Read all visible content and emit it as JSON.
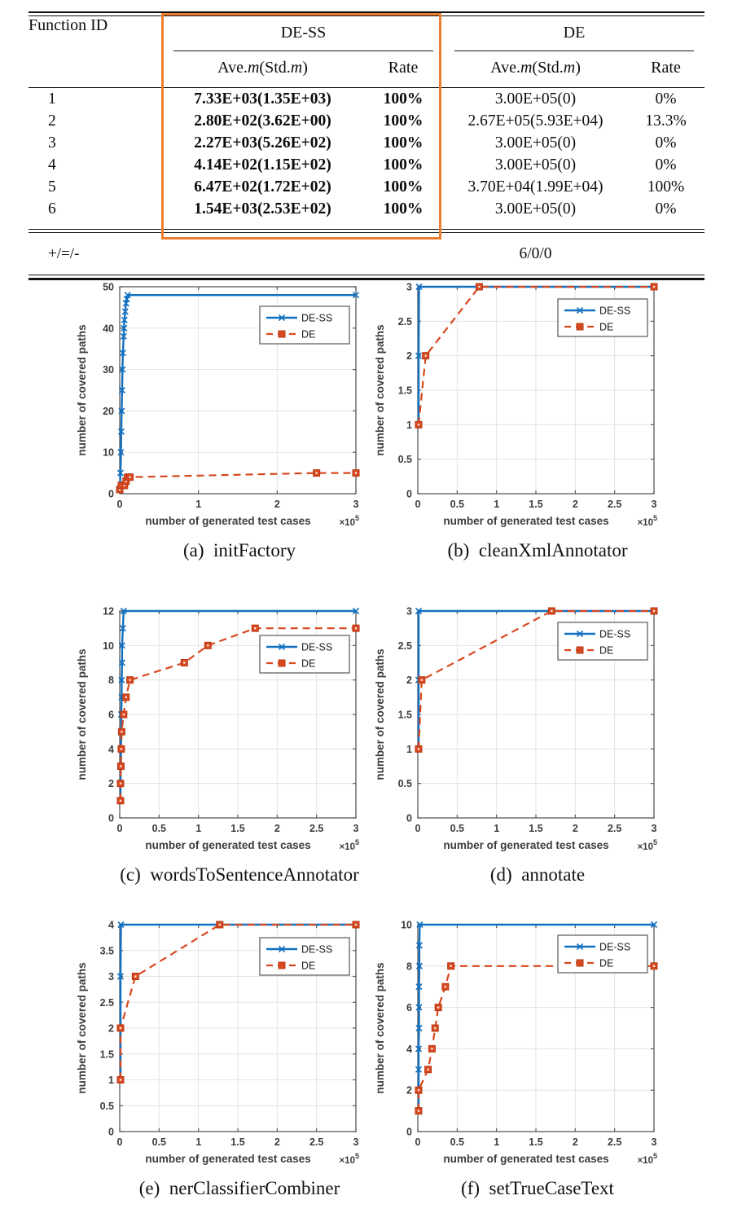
{
  "colors": {
    "dess_line": "#1170C0",
    "de_line": "#D8481F",
    "de_marker_edge": "#B93A15",
    "highlight_box": "#ED7D31",
    "grid": "#E3E3E3",
    "axis": "#5A5A5A"
  },
  "table": {
    "col_headers": {
      "function_id": "Function ID",
      "group1": "DE-SS",
      "group2": "DE",
      "ave": {
        "p1": "Ave.",
        "m1": "m",
        "p2": "(Std.",
        "m2": "m",
        "p3": ")"
      },
      "rate": "Rate"
    },
    "rows": [
      {
        "id": "1",
        "dess_ave": "7.33E+03(1.35E+03)",
        "dess_rate": "100%",
        "de_ave": "3.00E+05(0)",
        "de_rate": "0%"
      },
      {
        "id": "2",
        "dess_ave": "2.80E+02(3.62E+00)",
        "dess_rate": "100%",
        "de_ave": "2.67E+05(5.93E+04)",
        "de_rate": "13.3%"
      },
      {
        "id": "3",
        "dess_ave": "2.27E+03(5.26E+02)",
        "dess_rate": "100%",
        "de_ave": "3.00E+05(0)",
        "de_rate": "0%"
      },
      {
        "id": "4",
        "dess_ave": "4.14E+02(1.15E+02)",
        "dess_rate": "100%",
        "de_ave": "3.00E+05(0)",
        "de_rate": "0%"
      },
      {
        "id": "5",
        "dess_ave": "6.47E+02(1.72E+02)",
        "dess_rate": "100%",
        "de_ave": "3.70E+04(1.99E+04)",
        "de_rate": "100%"
      },
      {
        "id": "6",
        "dess_ave": "1.54E+03(2.53E+02)",
        "dess_rate": "100%",
        "de_ave": "3.00E+05(0)",
        "de_rate": "0%"
      }
    ],
    "footer": {
      "label": "+/=/-",
      "value": "6/0/0"
    }
  },
  "chart_data": [
    {
      "id": "a",
      "type": "line",
      "caption_label": "(a)",
      "caption_name": "initFactory",
      "xlabel": "number of generated test cases",
      "ylabel": "number of covered paths",
      "x_scale_base": "×10",
      "x_scale_exp": "5",
      "xlim": [
        0,
        3
      ],
      "ylim": [
        0,
        50
      ],
      "xticks": [
        0,
        1,
        2,
        3
      ],
      "yticks": [
        0,
        10,
        20,
        30,
        40,
        50
      ],
      "grid": true,
      "legend_position": "top-right",
      "legend_dy": 24,
      "series": [
        {
          "name": "DE-SS",
          "style": "solid",
          "marker": "x",
          "points": [
            [
              0,
              1
            ],
            [
              0.01,
              5
            ],
            [
              0.015,
              10
            ],
            [
              0.02,
              15
            ],
            [
              0.025,
              20
            ],
            [
              0.03,
              25
            ],
            [
              0.035,
              30
            ],
            [
              0.04,
              34
            ],
            [
              0.05,
              38
            ],
            [
              0.055,
              40
            ],
            [
              0.06,
              42
            ],
            [
              0.07,
              44
            ],
            [
              0.08,
              46
            ],
            [
              0.09,
              47
            ],
            [
              0.1,
              48
            ],
            [
              3,
              48
            ]
          ]
        },
        {
          "name": "DE",
          "style": "dashed",
          "marker": "square",
          "points": [
            [
              0,
              1
            ],
            [
              0.02,
              2
            ],
            [
              0.06,
              2
            ],
            [
              0.08,
              3
            ],
            [
              0.1,
              4
            ],
            [
              0.13,
              4
            ],
            [
              2.5,
              5
            ],
            [
              3,
              5
            ]
          ]
        }
      ]
    },
    {
      "id": "b",
      "type": "line",
      "caption_label": "(b)",
      "caption_name": "cleanXmlAnnotator",
      "xlabel": "number of generated test cases",
      "ylabel": "number of covered paths",
      "x_scale_base": "×10",
      "x_scale_exp": "5",
      "xlim": [
        0,
        3
      ],
      "ylim": [
        0,
        3
      ],
      "xticks": [
        0,
        0.5,
        1,
        1.5,
        2,
        2.5,
        3
      ],
      "yticks": [
        0,
        0.5,
        1,
        1.5,
        2,
        2.5,
        3
      ],
      "grid": true,
      "legend_position": "top-right",
      "legend_dy": 15,
      "series": [
        {
          "name": "DE-SS",
          "style": "solid",
          "marker": "x",
          "points": [
            [
              0.01,
              1
            ],
            [
              0.01,
              2
            ],
            [
              0.015,
              3
            ],
            [
              3,
              3
            ]
          ]
        },
        {
          "name": "DE",
          "style": "dashed",
          "marker": "square",
          "points": [
            [
              0.01,
              1
            ],
            [
              0.1,
              2
            ],
            [
              0.78,
              3
            ],
            [
              3,
              3
            ]
          ]
        }
      ]
    },
    {
      "id": "c",
      "type": "line",
      "caption_label": "(c)",
      "caption_name": "wordsToSentenceAnnotator",
      "xlabel": "number of generated test cases",
      "ylabel": "number of covered paths",
      "x_scale_base": "×10",
      "x_scale_exp": "5",
      "xlim": [
        0,
        3
      ],
      "ylim": [
        0,
        12
      ],
      "xticks": [
        0,
        0.5,
        1,
        1.5,
        2,
        2.5,
        3
      ],
      "yticks": [
        0,
        2,
        4,
        6,
        8,
        10,
        12
      ],
      "grid": true,
      "legend_position": "top-right",
      "legend_dy": 30,
      "series": [
        {
          "name": "DE-SS",
          "style": "solid",
          "marker": "x",
          "points": [
            [
              0.01,
              1
            ],
            [
              0.01,
              2
            ],
            [
              0.015,
              3
            ],
            [
              0.015,
              4
            ],
            [
              0.02,
              5
            ],
            [
              0.02,
              6
            ],
            [
              0.025,
              7
            ],
            [
              0.025,
              8
            ],
            [
              0.03,
              9
            ],
            [
              0.03,
              10
            ],
            [
              0.04,
              11
            ],
            [
              0.05,
              12
            ],
            [
              3,
              12
            ]
          ]
        },
        {
          "name": "DE",
          "style": "dashed",
          "marker": "square",
          "points": [
            [
              0.01,
              1
            ],
            [
              0.01,
              2
            ],
            [
              0.015,
              3
            ],
            [
              0.02,
              4
            ],
            [
              0.025,
              5
            ],
            [
              0.05,
              6
            ],
            [
              0.08,
              7
            ],
            [
              0.13,
              8
            ],
            [
              0.82,
              9
            ],
            [
              1.12,
              10
            ],
            [
              1.72,
              11
            ],
            [
              3,
              11
            ]
          ]
        }
      ]
    },
    {
      "id": "d",
      "type": "line",
      "caption_label": "(d)",
      "caption_name": "annotate",
      "xlabel": "number of generated test cases",
      "ylabel": "number of covered paths",
      "x_scale_base": "×10",
      "x_scale_exp": "5",
      "xlim": [
        0,
        3
      ],
      "ylim": [
        0,
        3
      ],
      "xticks": [
        0,
        0.5,
        1,
        1.5,
        2,
        2.5,
        3
      ],
      "yticks": [
        0,
        0.5,
        1,
        1.5,
        2,
        2.5,
        3
      ],
      "grid": true,
      "legend_position": "top-right",
      "legend_dy": 14,
      "series": [
        {
          "name": "DE-SS",
          "style": "solid",
          "marker": "x",
          "points": [
            [
              0.01,
              1
            ],
            [
              0.01,
              2
            ],
            [
              0.01,
              3
            ],
            [
              3,
              3
            ]
          ]
        },
        {
          "name": "DE",
          "style": "dashed",
          "marker": "square",
          "points": [
            [
              0.01,
              1
            ],
            [
              0.05,
              2
            ],
            [
              1.7,
              3
            ],
            [
              3,
              3
            ]
          ]
        }
      ]
    },
    {
      "id": "e",
      "type": "line",
      "caption_label": "(e)",
      "caption_name": "nerClassifierCombiner",
      "xlabel": "number of generated test cases",
      "ylabel": "number of covered paths",
      "x_scale_base": "×10",
      "x_scale_exp": "5",
      "xlim": [
        0,
        3
      ],
      "ylim": [
        0,
        4
      ],
      "xticks": [
        0,
        0.5,
        1,
        1.5,
        2,
        2.5,
        3
      ],
      "yticks": [
        0,
        0.5,
        1,
        1.5,
        2,
        2.5,
        3,
        3.5,
        4
      ],
      "grid": true,
      "legend_position": "top-right",
      "legend_dy": 16,
      "series": [
        {
          "name": "DE-SS",
          "style": "solid",
          "marker": "x",
          "points": [
            [
              0.01,
              1
            ],
            [
              0.01,
              2
            ],
            [
              0.01,
              3
            ],
            [
              0.015,
              4
            ],
            [
              3,
              4
            ]
          ]
        },
        {
          "name": "DE",
          "style": "dashed",
          "marker": "square",
          "points": [
            [
              0.01,
              1
            ],
            [
              0.01,
              2
            ],
            [
              0.2,
              3
            ],
            [
              1.27,
              4
            ],
            [
              3,
              4
            ]
          ]
        }
      ]
    },
    {
      "id": "f",
      "type": "line",
      "caption_label": "(f)",
      "caption_name": "setTrueCaseText",
      "xlabel": "number of generated test cases",
      "ylabel": "number of covered paths",
      "x_scale_base": "×10",
      "x_scale_exp": "5",
      "xlim": [
        0,
        3
      ],
      "ylim": [
        0,
        10
      ],
      "xticks": [
        0,
        0.5,
        1,
        1.5,
        2,
        2.5,
        3
      ],
      "yticks": [
        0,
        2,
        4,
        6,
        8,
        10
      ],
      "grid": true,
      "legend_position": "top-right",
      "legend_dy": 13,
      "series": [
        {
          "name": "DE-SS",
          "style": "solid",
          "marker": "x",
          "points": [
            [
              0.01,
              1
            ],
            [
              0.01,
              2
            ],
            [
              0.01,
              3
            ],
            [
              0.01,
              4
            ],
            [
              0.015,
              5
            ],
            [
              0.015,
              6
            ],
            [
              0.015,
              7
            ],
            [
              0.02,
              8
            ],
            [
              0.02,
              9
            ],
            [
              0.025,
              10
            ],
            [
              3,
              10
            ]
          ]
        },
        {
          "name": "DE",
          "style": "dashed",
          "marker": "square",
          "points": [
            [
              0.01,
              1
            ],
            [
              0.01,
              2
            ],
            [
              0.13,
              3
            ],
            [
              0.18,
              4
            ],
            [
              0.22,
              5
            ],
            [
              0.26,
              6
            ],
            [
              0.35,
              7
            ],
            [
              0.42,
              8
            ],
            [
              3,
              8
            ]
          ]
        }
      ]
    }
  ]
}
